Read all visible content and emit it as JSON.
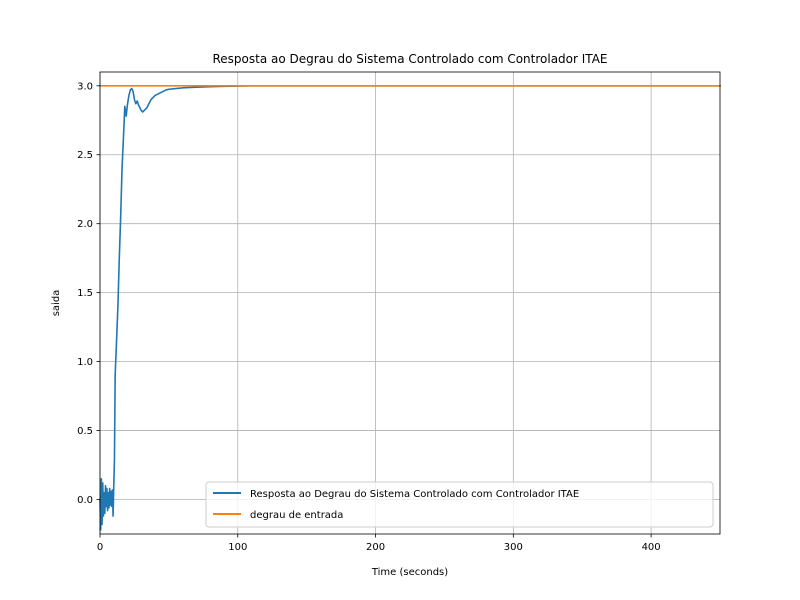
{
  "chart_data": {
    "type": "line",
    "title": "Resposta ao Degrau do Sistema Controlado com Controlador ITAE",
    "xlabel": "Time (seconds)",
    "ylabel": "saida",
    "xlim": [
      0,
      450
    ],
    "ylim": [
      -0.25,
      3.1
    ],
    "xticks": [
      0,
      100,
      200,
      300,
      400
    ],
    "xtick_labels": [
      "0",
      "100",
      "200",
      "300",
      "400"
    ],
    "yticks": [
      0.0,
      0.5,
      1.0,
      1.5,
      2.0,
      2.5,
      3.0
    ],
    "ytick_labels": [
      "0.0",
      "0.5",
      "1.0",
      "1.5",
      "2.0",
      "2.5",
      "3.0"
    ],
    "grid": true,
    "legend_position": "lower-right",
    "series": [
      {
        "name": "Resposta ao Degrau do Sistema Controlado com Controlador ITAE",
        "color": "#1f77b4",
        "x": [
          0,
          0.5,
          1,
          1.5,
          2,
          2.5,
          3,
          3.5,
          4,
          4.5,
          5,
          5.5,
          6,
          6.5,
          7,
          7.5,
          8,
          8.5,
          9,
          9.5,
          10,
          10.5,
          11,
          12,
          13,
          14,
          15,
          16,
          17,
          18,
          19,
          20,
          21,
          22,
          23,
          24,
          25,
          26,
          27,
          28,
          29,
          30,
          31,
          32,
          33,
          34,
          35,
          36,
          37,
          38,
          39,
          40,
          42,
          44,
          46,
          48,
          50,
          55,
          60,
          70,
          80,
          90,
          100,
          110,
          120,
          130,
          140,
          150,
          160,
          175,
          200,
          250,
          300,
          350,
          400,
          450
        ],
        "y": [
          0.0,
          -0.22,
          0.15,
          -0.18,
          0.12,
          -0.12,
          0.05,
          -0.1,
          0.1,
          -0.05,
          0.08,
          -0.08,
          0.05,
          -0.06,
          0.08,
          -0.04,
          0.06,
          -0.05,
          0.07,
          -0.12,
          0.1,
          0.3,
          0.9,
          1.15,
          1.4,
          1.75,
          2.05,
          2.4,
          2.62,
          2.85,
          2.78,
          2.87,
          2.93,
          2.97,
          2.98,
          2.96,
          2.9,
          2.87,
          2.89,
          2.86,
          2.84,
          2.82,
          2.81,
          2.82,
          2.83,
          2.84,
          2.86,
          2.88,
          2.9,
          2.91,
          2.92,
          2.93,
          2.94,
          2.95,
          2.96,
          2.97,
          2.975,
          2.98,
          2.985,
          2.99,
          2.993,
          2.996,
          2.998,
          3.0,
          3.0,
          3.0,
          3.0,
          3.0,
          3.0,
          3.0,
          3.0,
          3.0,
          3.0,
          3.0,
          3.0,
          3.0
        ]
      },
      {
        "name": "degrau de entrada",
        "color": "#ff7f0e",
        "x": [
          0,
          450
        ],
        "y": [
          3.0,
          3.0
        ]
      }
    ]
  }
}
